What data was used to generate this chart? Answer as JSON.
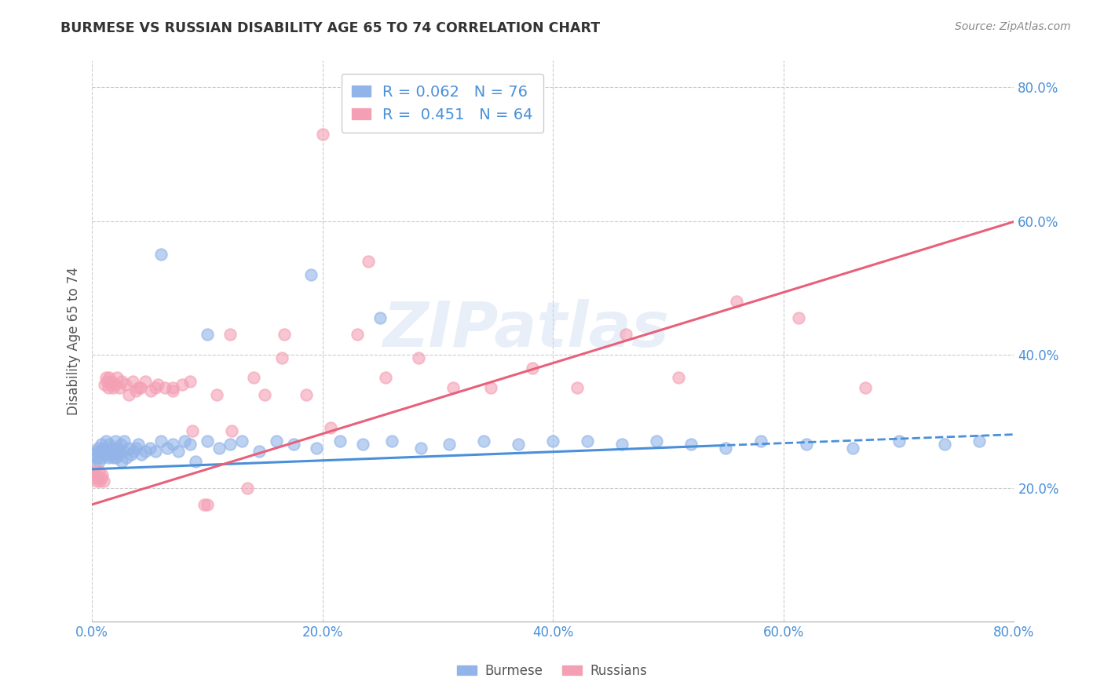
{
  "title": "BURMESE VS RUSSIAN DISABILITY AGE 65 TO 74 CORRELATION CHART",
  "source": "Source: ZipAtlas.com",
  "ylabel": "Disability Age 65 to 74",
  "xlim": [
    0.0,
    0.8
  ],
  "ylim": [
    0.0,
    0.84
  ],
  "xticks": [
    0.0,
    0.2,
    0.4,
    0.6,
    0.8
  ],
  "yticks": [
    0.2,
    0.4,
    0.6,
    0.8
  ],
  "xticklabels": [
    "0.0%",
    "20.0%",
    "40.0%",
    "60.0%",
    "80.0%"
  ],
  "yticklabels": [
    "20.0%",
    "40.0%",
    "60.0%",
    "80.0%"
  ],
  "burmese_color": "#92b4e8",
  "russian_color": "#f4a0b4",
  "burmese_line_color": "#4a90d9",
  "russian_line_color": "#e8607a",
  "burmese_R": "0.062",
  "burmese_N": "76",
  "russian_R": "0.451",
  "russian_N": "64",
  "watermark": "ZIPatlas",
  "burmese_x": [
    0.001,
    0.002,
    0.003,
    0.004,
    0.005,
    0.006,
    0.007,
    0.008,
    0.009,
    0.01,
    0.011,
    0.012,
    0.013,
    0.014,
    0.015,
    0.016,
    0.017,
    0.018,
    0.019,
    0.02,
    0.021,
    0.022,
    0.023,
    0.024,
    0.025,
    0.026,
    0.027,
    0.028,
    0.03,
    0.032,
    0.034,
    0.036,
    0.038,
    0.04,
    0.043,
    0.046,
    0.05,
    0.055,
    0.06,
    0.065,
    0.07,
    0.075,
    0.08,
    0.085,
    0.09,
    0.1,
    0.11,
    0.12,
    0.13,
    0.145,
    0.16,
    0.175,
    0.195,
    0.215,
    0.235,
    0.26,
    0.285,
    0.31,
    0.34,
    0.37,
    0.4,
    0.43,
    0.46,
    0.49,
    0.52,
    0.55,
    0.58,
    0.62,
    0.66,
    0.7,
    0.74,
    0.77,
    0.19,
    0.1,
    0.06,
    0.25
  ],
  "burmese_y": [
    0.25,
    0.235,
    0.255,
    0.245,
    0.26,
    0.24,
    0.255,
    0.265,
    0.245,
    0.26,
    0.25,
    0.27,
    0.255,
    0.245,
    0.265,
    0.25,
    0.26,
    0.245,
    0.255,
    0.27,
    0.245,
    0.26,
    0.25,
    0.255,
    0.265,
    0.24,
    0.255,
    0.27,
    0.245,
    0.26,
    0.25,
    0.255,
    0.26,
    0.265,
    0.25,
    0.255,
    0.26,
    0.255,
    0.27,
    0.26,
    0.265,
    0.255,
    0.27,
    0.265,
    0.24,
    0.27,
    0.26,
    0.265,
    0.27,
    0.255,
    0.27,
    0.265,
    0.26,
    0.27,
    0.265,
    0.27,
    0.26,
    0.265,
    0.27,
    0.265,
    0.27,
    0.27,
    0.265,
    0.27,
    0.265,
    0.26,
    0.27,
    0.265,
    0.26,
    0.27,
    0.265,
    0.27,
    0.52,
    0.43,
    0.55,
    0.455
  ],
  "russian_x": [
    0.001,
    0.002,
    0.003,
    0.004,
    0.005,
    0.006,
    0.007,
    0.008,
    0.009,
    0.01,
    0.011,
    0.012,
    0.013,
    0.014,
    0.015,
    0.016,
    0.017,
    0.018,
    0.02,
    0.022,
    0.024,
    0.026,
    0.029,
    0.032,
    0.035,
    0.038,
    0.042,
    0.046,
    0.051,
    0.057,
    0.063,
    0.07,
    0.078,
    0.087,
    0.097,
    0.108,
    0.121,
    0.135,
    0.15,
    0.167,
    0.186,
    0.207,
    0.23,
    0.255,
    0.283,
    0.313,
    0.346,
    0.382,
    0.421,
    0.463,
    0.509,
    0.559,
    0.613,
    0.671,
    0.04,
    0.055,
    0.07,
    0.085,
    0.1,
    0.12,
    0.14,
    0.165,
    0.2,
    0.24
  ],
  "russian_y": [
    0.225,
    0.215,
    0.22,
    0.21,
    0.215,
    0.225,
    0.21,
    0.215,
    0.22,
    0.21,
    0.355,
    0.365,
    0.36,
    0.35,
    0.365,
    0.355,
    0.36,
    0.35,
    0.355,
    0.365,
    0.35,
    0.36,
    0.355,
    0.34,
    0.36,
    0.345,
    0.35,
    0.36,
    0.345,
    0.355,
    0.35,
    0.345,
    0.355,
    0.285,
    0.175,
    0.34,
    0.285,
    0.2,
    0.34,
    0.43,
    0.34,
    0.29,
    0.43,
    0.365,
    0.395,
    0.35,
    0.35,
    0.38,
    0.35,
    0.43,
    0.365,
    0.48,
    0.455,
    0.35,
    0.35,
    0.35,
    0.35,
    0.36,
    0.175,
    0.43,
    0.365,
    0.395,
    0.73,
    0.54
  ]
}
